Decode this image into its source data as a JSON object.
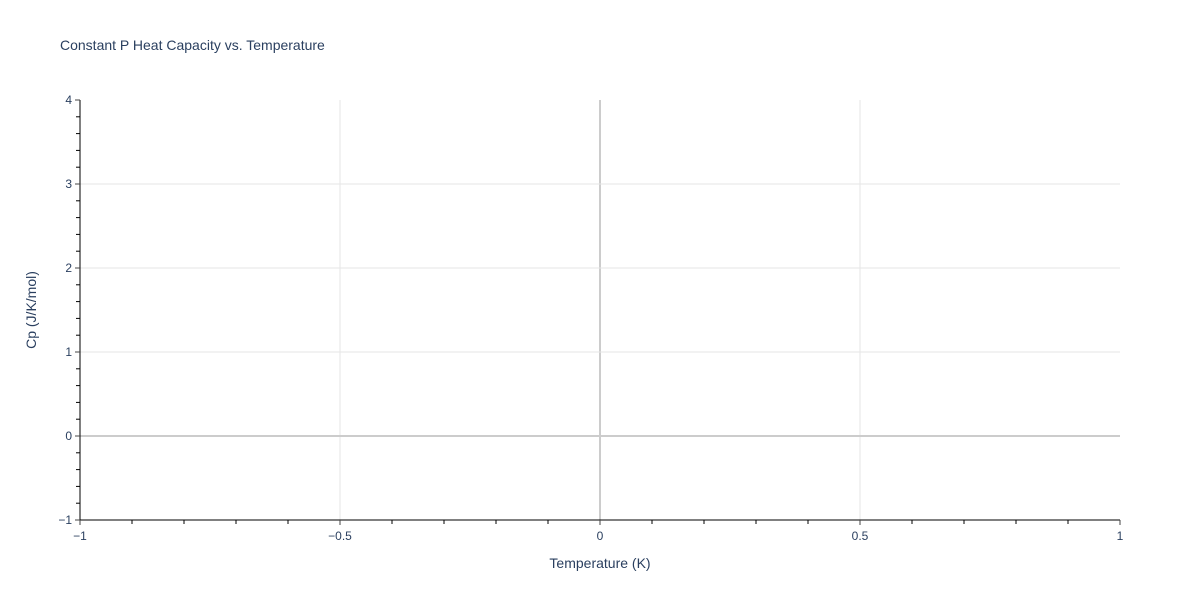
{
  "chart_data": {
    "type": "line",
    "title": "Constant P Heat Capacity vs. Temperature",
    "xlabel": "Temperature (K)",
    "ylabel": "Cp (J/K/mol)",
    "xlim": [
      -1,
      1
    ],
    "ylim": [
      -1,
      4
    ],
    "xticks": [
      -1,
      -0.5,
      0,
      0.5,
      1
    ],
    "xtick_labels": [
      "−1",
      "−0.5",
      "0",
      "0.5",
      "1"
    ],
    "yticks": [
      -1,
      0,
      1,
      2,
      3,
      4
    ],
    "ytick_labels": [
      "−1",
      "0",
      "1",
      "2",
      "3",
      "4"
    ],
    "grid": true,
    "series": []
  },
  "colors": {
    "grid": "#e5e5e5",
    "zeroline": "#cccccc",
    "axis": "#000000",
    "text": "#2a3f5f"
  }
}
